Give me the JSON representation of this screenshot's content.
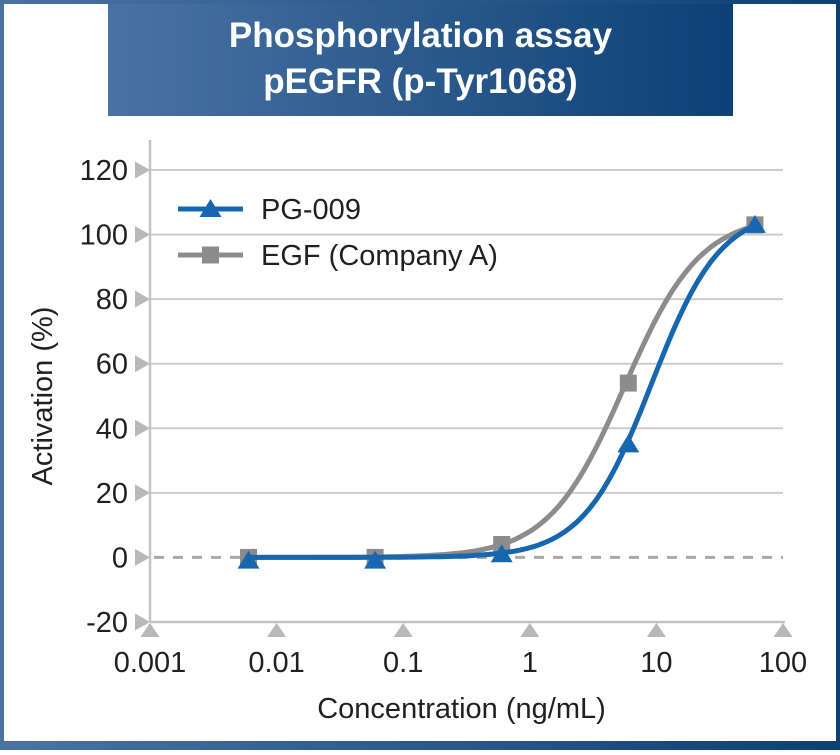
{
  "banner": {
    "line1": "Phosphorylation assay",
    "line2": "pEGFR (p-Tyr1068)",
    "text_color": "#ffffff",
    "gradient_left": "#4a73a4",
    "gradient_right": "#0c4076"
  },
  "chart_data": {
    "type": "line",
    "title": "Phosphorylation assay pEGFR (p-Tyr1068)",
    "xlabel": "Concentration (ng/mL)",
    "ylabel": "Activation (%)",
    "x_scale": "log",
    "xlim": [
      0.001,
      100
    ],
    "ylim": [
      -20,
      120
    ],
    "x_ticks": [
      0.001,
      0.01,
      0.1,
      1,
      10,
      100
    ],
    "x_tick_labels": [
      "0.001",
      "0.01",
      "0.1",
      "1",
      "10",
      "100"
    ],
    "y_ticks": [
      -20,
      0,
      20,
      40,
      60,
      80,
      100,
      120
    ],
    "y_tick_labels": [
      "-20",
      "0",
      "20",
      "40",
      "60",
      "80",
      "100",
      "120"
    ],
    "grid": "horizontal",
    "zero_line_style": "dashed",
    "legend_position": "inside-top-left",
    "series": [
      {
        "name": "PG-009",
        "color": "#1767b0",
        "marker": "triangle",
        "x": [
          0.006,
          0.06,
          0.6,
          6,
          60
        ],
        "y": [
          -1,
          -1,
          1,
          35,
          103
        ],
        "fitted_curve": {
          "bottom": 0,
          "top": 108,
          "ec50": 9.2,
          "hill": 1.6
        }
      },
      {
        "name": "EGF (Company A)",
        "color": "#8c8c8c",
        "marker": "square",
        "x": [
          0.006,
          0.06,
          0.6,
          6,
          60
        ],
        "y": [
          0,
          0,
          4,
          54,
          103
        ],
        "fitted_curve": {
          "bottom": 0,
          "top": 106,
          "ec50": 5.6,
          "hill": 1.45
        }
      }
    ]
  }
}
